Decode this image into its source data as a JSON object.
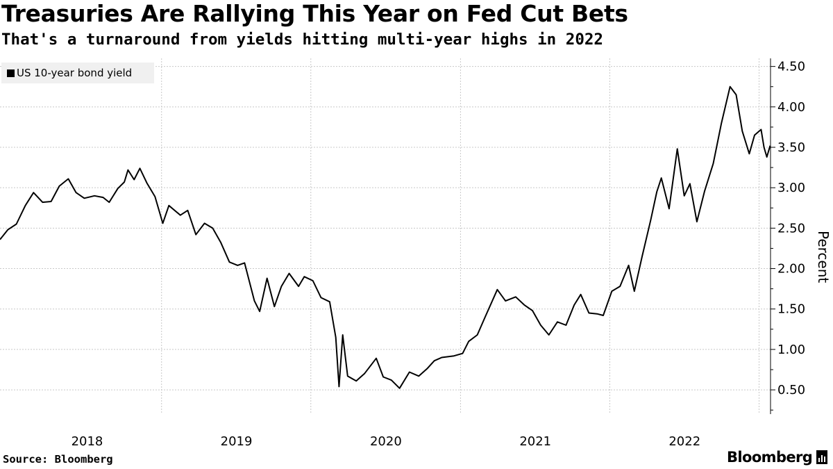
{
  "header": {
    "title": "Treasuries Are Rallying This Year on Fed Cut Bets",
    "subtitle": "That's a turnaround from yields hitting multi-year highs in 2022"
  },
  "footer": {
    "source": "Source: Bloomberg",
    "brand": "Bloomberg"
  },
  "chart_data": {
    "type": "line",
    "title": "Treasuries Are Rallying This Year on Fed Cut Bets",
    "subtitle": "That's a turnaround from yields hitting multi-year highs in 2022",
    "ylabel": "Percent",
    "xlabel": "",
    "ylim": [
      0.2,
      4.6
    ],
    "xlim": [
      "2017-12-01",
      "2023-01-28"
    ],
    "yticks": [
      0.5,
      1.0,
      1.5,
      2.0,
      2.5,
      3.0,
      3.5,
      4.0,
      4.5
    ],
    "ytick_labels": [
      "0.50",
      "1.00",
      "1.50",
      "2.00",
      "2.50",
      "3.00",
      "3.50",
      "4.00",
      "4.50"
    ],
    "xtick_labels": [
      "2018",
      "2019",
      "2020",
      "2021",
      "2022"
    ],
    "grid": true,
    "legend_position": "top-left",
    "colors": {
      "line": "#000000",
      "grid": "#c8c8c8",
      "legend_bg": "#f0f0f0"
    },
    "series": [
      {
        "name": "US 10-year bond yield",
        "points": [
          [
            "2017-12-01",
            2.36
          ],
          [
            "2017-12-20",
            2.48
          ],
          [
            "2018-01-10",
            2.55
          ],
          [
            "2018-02-01",
            2.78
          ],
          [
            "2018-02-21",
            2.94
          ],
          [
            "2018-03-15",
            2.82
          ],
          [
            "2018-04-05",
            2.83
          ],
          [
            "2018-04-25",
            3.02
          ],
          [
            "2018-05-17",
            3.11
          ],
          [
            "2018-06-05",
            2.94
          ],
          [
            "2018-06-25",
            2.87
          ],
          [
            "2018-07-20",
            2.9
          ],
          [
            "2018-08-10",
            2.88
          ],
          [
            "2018-08-25",
            2.82
          ],
          [
            "2018-09-15",
            2.99
          ],
          [
            "2018-10-01",
            3.07
          ],
          [
            "2018-10-10",
            3.22
          ],
          [
            "2018-10-25",
            3.1
          ],
          [
            "2018-11-08",
            3.24
          ],
          [
            "2018-11-25",
            3.06
          ],
          [
            "2018-12-15",
            2.89
          ],
          [
            "2019-01-03",
            2.56
          ],
          [
            "2019-01-18",
            2.78
          ],
          [
            "2019-02-15",
            2.66
          ],
          [
            "2019-03-05",
            2.72
          ],
          [
            "2019-03-25",
            2.42
          ],
          [
            "2019-04-15",
            2.56
          ],
          [
            "2019-05-05",
            2.5
          ],
          [
            "2019-05-25",
            2.32
          ],
          [
            "2019-06-15",
            2.08
          ],
          [
            "2019-07-05",
            2.04
          ],
          [
            "2019-07-22",
            2.07
          ],
          [
            "2019-08-15",
            1.6
          ],
          [
            "2019-08-28",
            1.47
          ],
          [
            "2019-09-15",
            1.88
          ],
          [
            "2019-10-03",
            1.53
          ],
          [
            "2019-10-20",
            1.78
          ],
          [
            "2019-11-08",
            1.94
          ],
          [
            "2019-12-01",
            1.78
          ],
          [
            "2019-12-15",
            1.9
          ],
          [
            "2020-01-05",
            1.85
          ],
          [
            "2020-01-25",
            1.64
          ],
          [
            "2020-02-15",
            1.59
          ],
          [
            "2020-03-01",
            1.15
          ],
          [
            "2020-03-09",
            0.54
          ],
          [
            "2020-03-18",
            1.18
          ],
          [
            "2020-03-30",
            0.67
          ],
          [
            "2020-04-20",
            0.61
          ],
          [
            "2020-05-10",
            0.7
          ],
          [
            "2020-06-08",
            0.89
          ],
          [
            "2020-06-25",
            0.66
          ],
          [
            "2020-07-15",
            0.62
          ],
          [
            "2020-08-04",
            0.52
          ],
          [
            "2020-08-28",
            0.72
          ],
          [
            "2020-09-20",
            0.67
          ],
          [
            "2020-10-10",
            0.76
          ],
          [
            "2020-10-28",
            0.86
          ],
          [
            "2020-11-15",
            0.9
          ],
          [
            "2020-12-15",
            0.92
          ],
          [
            "2021-01-05",
            0.95
          ],
          [
            "2021-01-20",
            1.1
          ],
          [
            "2021-02-10",
            1.18
          ],
          [
            "2021-03-01",
            1.4
          ],
          [
            "2021-03-31",
            1.74
          ],
          [
            "2021-04-20",
            1.6
          ],
          [
            "2021-05-15",
            1.65
          ],
          [
            "2021-06-05",
            1.55
          ],
          [
            "2021-06-25",
            1.48
          ],
          [
            "2021-07-15",
            1.3
          ],
          [
            "2021-08-04",
            1.18
          ],
          [
            "2021-08-25",
            1.34
          ],
          [
            "2021-09-15",
            1.3
          ],
          [
            "2021-10-05",
            1.55
          ],
          [
            "2021-10-21",
            1.68
          ],
          [
            "2021-11-10",
            1.45
          ],
          [
            "2021-11-30",
            1.44
          ],
          [
            "2021-12-15",
            1.42
          ],
          [
            "2022-01-05",
            1.72
          ],
          [
            "2022-01-25",
            1.78
          ],
          [
            "2022-02-15",
            2.04
          ],
          [
            "2022-03-01",
            1.72
          ],
          [
            "2022-03-20",
            2.15
          ],
          [
            "2022-04-10",
            2.6
          ],
          [
            "2022-04-25",
            2.95
          ],
          [
            "2022-05-06",
            3.12
          ],
          [
            "2022-05-25",
            2.74
          ],
          [
            "2022-06-14",
            3.48
          ],
          [
            "2022-07-01",
            2.9
          ],
          [
            "2022-07-15",
            3.05
          ],
          [
            "2022-08-01",
            2.58
          ],
          [
            "2022-08-20",
            2.96
          ],
          [
            "2022-09-10",
            3.3
          ],
          [
            "2022-09-30",
            3.8
          ],
          [
            "2022-10-21",
            4.25
          ],
          [
            "2022-11-05",
            4.15
          ],
          [
            "2022-11-20",
            3.7
          ],
          [
            "2022-12-07",
            3.42
          ],
          [
            "2022-12-20",
            3.65
          ],
          [
            "2023-01-05",
            3.72
          ],
          [
            "2023-01-12",
            3.5
          ],
          [
            "2023-01-19",
            3.38
          ],
          [
            "2023-01-27",
            3.52
          ]
        ]
      }
    ]
  }
}
